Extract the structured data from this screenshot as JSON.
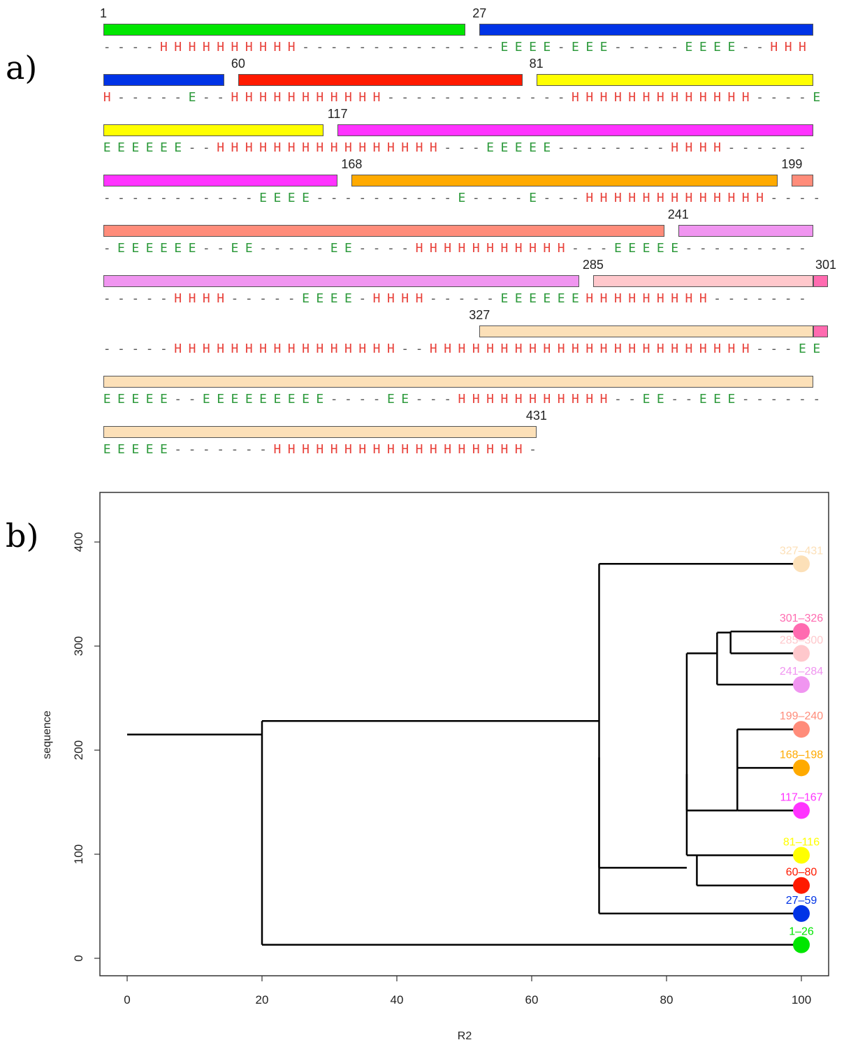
{
  "panel_a": {
    "label": "a)",
    "rows": [
      {
        "segments": [
          {
            "start_res": 1,
            "end_res": 26,
            "color": "#00e600",
            "start_label": "1"
          },
          {
            "start_res": 27,
            "end_res": 59,
            "color": "#0033e6",
            "start_label": "27"
          }
        ],
        "ss": "----HHHHHHHHHH--------------EEEE-EEE-----EEEE--HHH"
      },
      {
        "segments": [
          {
            "start_res": 27,
            "end_res": 59,
            "color": "#0033e6",
            "start_label": ""
          },
          {
            "start_res": 60,
            "end_res": 80,
            "color": "#ff1a00",
            "start_label": "60"
          },
          {
            "start_res": 81,
            "end_res": 116,
            "color": "#ffff00",
            "start_label": "81"
          }
        ],
        "ss": "H-----E--HHHHHHHHHHH-------------HHHHHHHHHHHHH----E"
      },
      {
        "segments": [
          {
            "start_res": 81,
            "end_res": 116,
            "color": "#ffff00",
            "start_label": ""
          },
          {
            "start_res": 117,
            "end_res": 167,
            "color": "#ff33ff",
            "start_label": "117"
          }
        ],
        "ss": "EEEEEE--HHHHHHHHHHHHHHHH---EEEEE--------HHHH------"
      },
      {
        "segments": [
          {
            "start_res": 117,
            "end_res": 167,
            "color": "#ff33ff",
            "start_label": ""
          },
          {
            "start_res": 168,
            "end_res": 198,
            "color": "#ffaa00",
            "start_label": "168"
          },
          {
            "start_res": 199,
            "end_res": 240,
            "color": "#ff8c7a",
            "start_label": "199"
          }
        ],
        "ss": "-----------EEEE----------E----E---HHHHHHHHHHHHH----"
      },
      {
        "segments": [
          {
            "start_res": 199,
            "end_res": 240,
            "color": "#ff8c7a",
            "start_label": ""
          },
          {
            "start_res": 241,
            "end_res": 284,
            "color": "#f095f0",
            "start_label": "241"
          }
        ],
        "ss": "-EEEEEE--EE-----EE----HHHHHHHHHHH---EEEEE---------"
      },
      {
        "segments": [
          {
            "start_res": 241,
            "end_res": 284,
            "color": "#f095f0",
            "start_label": ""
          },
          {
            "start_res": 285,
            "end_res": 300,
            "color": "#ffc8cc",
            "start_label": "285"
          },
          {
            "start_res": 301,
            "end_res": 326,
            "color": "#ff6bb0",
            "start_label": "301"
          }
        ],
        "ss": "-----HHHH-----EEEE-HHHH-----EEEEEEHHHHHHHHH-------"
      },
      {
        "segments": [
          {
            "start_res": 301,
            "end_res": 326,
            "color": "#ff6bb0",
            "start_label": ""
          },
          {
            "start_res": 327,
            "end_res": 431,
            "color": "#fce0b8",
            "start_label": "327"
          }
        ],
        "ss": "-----HHHHHHHHHHHHHHHH--HHHHHHHHHHHHHHHHHHHHHHH---EE"
      },
      {
        "segments": [
          {
            "start_res": 327,
            "end_res": 431,
            "color": "#fce0b8",
            "start_label": ""
          }
        ],
        "ss": "EEEEE--EEEEEEEEE----EE---HHHHHHHHHHH--EE--EEE------"
      },
      {
        "segments": [
          {
            "start_res": 327,
            "end_res": 431,
            "color": "#fce0b8",
            "start_label": "",
            "end_label": "431"
          }
        ],
        "ss": "EEEEE-------HHHHHHHHHHHHHHHHHH-"
      }
    ]
  },
  "panel_b": {
    "label": "b)",
    "chart_data": {
      "type": "dendrogram",
      "xlabel": "R2",
      "ylabel": "sequence",
      "xlim": [
        0,
        100
      ],
      "ylim": [
        0,
        400
      ],
      "xticks": [
        "0",
        "20",
        "40",
        "60",
        "80",
        "100"
      ],
      "yticks": [
        "0",
        "100",
        "200",
        "300",
        "400"
      ],
      "leaves": [
        {
          "name": "1–26",
          "y": 13,
          "color": "#00e600"
        },
        {
          "name": "27–59",
          "y": 43,
          "color": "#0033e6"
        },
        {
          "name": "60–80",
          "y": 70,
          "color": "#ff1a00"
        },
        {
          "name": "81–116",
          "y": 99,
          "color": "#ffff00"
        },
        {
          "name": "117–167",
          "y": 142,
          "color": "#ff33ff"
        },
        {
          "name": "168–198",
          "y": 183,
          "color": "#ffaa00"
        },
        {
          "name": "199–240",
          "y": 220,
          "color": "#ff8c7a"
        },
        {
          "name": "241–284",
          "y": 263,
          "color": "#f095f0"
        },
        {
          "name": "285–300",
          "y": 293,
          "color": "#ffc8cc"
        },
        {
          "name": "301–326",
          "y": 314,
          "color": "#ff6bb0"
        },
        {
          "name": "327–431",
          "y": 379,
          "color": "#fce0b8"
        }
      ],
      "merges": [
        {
          "r2": 89.5,
          "children": [
            "301–326",
            "285–300"
          ],
          "y": 313
        },
        {
          "r2": 87.5,
          "children": [
            "n0",
            "241–284"
          ],
          "y": 293
        },
        {
          "r2": 90.5,
          "children": [
            "199–240",
            "168–198"
          ],
          "y": 183
        },
        {
          "r2": 90.5,
          "children": [
            "n2",
            "117–167"
          ],
          "y": 142
        },
        {
          "r2": 84.5,
          "children": [
            "81–116",
            "60–80"
          ],
          "y": 99
        },
        {
          "r2": 83,
          "children": [
            "n1",
            "n3"
          ],
          "y": 177
        },
        {
          "r2": 83,
          "children": [
            "n5",
            "n4"
          ],
          "y": 87
        },
        {
          "r2": 70,
          "children": [
            "327–431",
            "27–59"
          ],
          "y": 193
        },
        {
          "r2": 70,
          "children": [
            "n7",
            "n6"
          ],
          "y": 228
        },
        {
          "r2": 20,
          "children": [
            "n8",
            "1–26"
          ],
          "y": 215
        }
      ]
    }
  }
}
